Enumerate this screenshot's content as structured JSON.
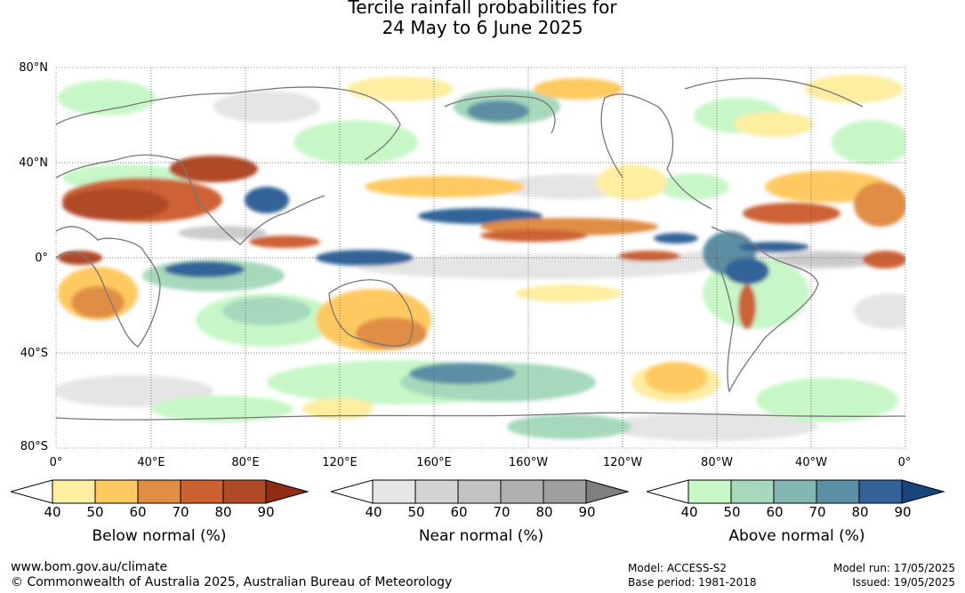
{
  "title": {
    "line1": "Tercile rainfall probabilities for",
    "line2": "24 May to 6 June 2025"
  },
  "latitude_labels": [
    "80°N",
    "40°N",
    "0°",
    "40°S",
    "80°S"
  ],
  "longitude_labels": [
    "0°",
    "40°E",
    "80°E",
    "120°E",
    "160°E",
    "160°W",
    "120°W",
    "80°W",
    "40°W",
    "0°"
  ],
  "colorbars": [
    {
      "title": "Below normal (%)",
      "ticks": [
        "40",
        "50",
        "60",
        "70",
        "80",
        "90"
      ],
      "colors": [
        "#ffffff",
        "#ffeda0",
        "#fec960",
        "#e08e45",
        "#cc6234",
        "#b04a26",
        "#8c2d14"
      ]
    },
    {
      "title": "Near normal (%)",
      "ticks": [
        "40",
        "50",
        "60",
        "70",
        "80",
        "90"
      ],
      "colors": [
        "#ffffff",
        "#e6e6e6",
        "#d4d4d4",
        "#c3c3c3",
        "#b0b0b0",
        "#9f9f9f",
        "#7f7f7f"
      ]
    },
    {
      "title": "Above normal (%)",
      "ticks": [
        "40",
        "50",
        "60",
        "70",
        "80",
        "90"
      ],
      "colors": [
        "#ffffff",
        "#c7f7c7",
        "#a6d8bc",
        "#84b6b2",
        "#5b8fa4",
        "#336399",
        "#17457e"
      ]
    }
  ],
  "footer": {
    "url": "www.bom.gov.au/climate",
    "copyright": "© Commonwealth of Australia 2025, Australian Bureau of Meteorology",
    "model": "Model: ACCESS-S2",
    "base_period": "Base period: 1981-2018",
    "model_run": "Model run: 17/05/2025",
    "issued": "Issued: 19/05/2025"
  }
}
